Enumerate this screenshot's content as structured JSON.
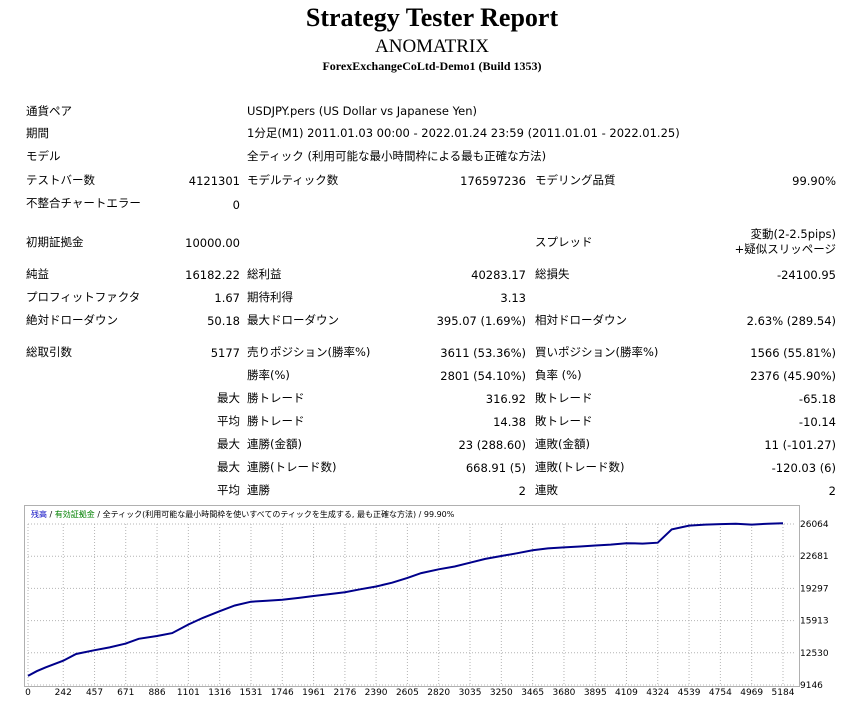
{
  "header": {
    "title": "Strategy Tester Report",
    "expert": "ANOMATRIX",
    "account": "ForexExchangeCoLtd-Demo1 (Build 1353)"
  },
  "summary": {
    "symbol_label": "通貨ペア",
    "symbol_value": "USDJPY.pers (US Dollar vs Japanese Yen)",
    "period_label": "期間",
    "period_value": "1分足(M1) 2011.01.03 00:00 - 2022.01.24 23:59 (2011.01.01 - 2022.01.25)",
    "model_label": "モデル",
    "model_value": "全ティック (利用可能な最小時間枠による最も正確な方法)",
    "bars_label": "テストバー数",
    "bars_value": "4121301",
    "ticks_label": "モデルティック数",
    "ticks_value": "176597236",
    "quality_label": "モデリング品質",
    "quality_value": "99.90%",
    "errors_label": "不整合チャートエラー",
    "errors_value": "0",
    "deposit_label": "初期証拠金",
    "deposit_value": "10000.00",
    "spread_label": "スプレッド",
    "spread_value_1": "変動(2-2.5pips)",
    "spread_value_2": "+疑似スリッページ",
    "net_label": "純益",
    "net_value": "16182.22",
    "gross_profit_label": "総利益",
    "gross_profit_value": "40283.17",
    "gross_loss_label": "総損失",
    "gross_loss_value": "-24100.95",
    "pf_label": "プロフィットファクタ",
    "pf_value": "1.67",
    "payoff_label": "期待利得",
    "payoff_value": "3.13",
    "abs_dd_label": "絶対ドローダウン",
    "abs_dd_value": "50.18",
    "max_dd_label": "最大ドローダウン",
    "max_dd_value": "395.07 (1.69%)",
    "rel_dd_label": "相対ドローダウン",
    "rel_dd_value": "2.63% (289.54)",
    "trades_label": "総取引数",
    "trades_value": "5177",
    "short_label": "売りポジション(勝率%)",
    "short_value": "3611 (53.36%)",
    "long_label": "買いポジション(勝率%)",
    "long_value": "1566 (55.81%)",
    "win_label": "勝率(%)",
    "win_value": "2801 (54.10%)",
    "loss_label": "負率 (%)",
    "loss_value": "2376 (45.90%)",
    "max_prefix": "最大",
    "avg_prefix": "平均",
    "largest_win_label": "勝トレード",
    "largest_win_value": "316.92",
    "largest_loss_label": "敗トレード",
    "largest_loss_value": "-65.18",
    "avg_win_label": "勝トレード",
    "avg_win_value": "14.38",
    "avg_loss_label": "敗トレード",
    "avg_loss_value": "-10.14",
    "max_cons_wins_money_label": "連勝(金額)",
    "max_cons_wins_money_value": "23 (288.60)",
    "max_cons_losses_money_label": "連敗(金額)",
    "max_cons_losses_money_value": "11 (-101.27)",
    "max_cons_profit_label": "連勝(トレード数)",
    "max_cons_profit_value": "668.91 (5)",
    "max_cons_loss_label": "連敗(トレード数)",
    "max_cons_loss_value": "-120.03 (6)",
    "avg_cons_wins_label": "連勝",
    "avg_cons_wins_value": "2",
    "avg_cons_losses_label": "連敗",
    "avg_cons_losses_value": "2"
  },
  "chart": {
    "legend_balance": "残高",
    "legend_equity": "有効証拠金",
    "legend_rest": "全ティック(利用可能な最小時間枠を使いすべてのティックを生成する, 最も正確な方法) / 99.90%",
    "line_color": "#00008b",
    "grid_color": "#b4b4b4"
  },
  "chart_data": {
    "type": "line",
    "x_ticks": [
      "0",
      "242",
      "457",
      "671",
      "886",
      "1101",
      "1316",
      "1531",
      "1746",
      "1961",
      "2176",
      "2390",
      "2605",
      "2820",
      "3035",
      "3250",
      "3465",
      "3680",
      "3895",
      "4109",
      "4324",
      "4539",
      "4754",
      "4969",
      "5184"
    ],
    "y_ticks": [
      "9146",
      "12530",
      "15913",
      "19297",
      "22681",
      "26064"
    ],
    "ylim": [
      9146,
      26064
    ],
    "xlim": [
      0,
      5184
    ],
    "series": [
      {
        "name": "残高",
        "x": [
          0,
          60,
          120,
          242,
          330,
          457,
          560,
          671,
          760,
          886,
          990,
          1101,
          1200,
          1316,
          1420,
          1531,
          1640,
          1746,
          1860,
          1961,
          2070,
          2176,
          2280,
          2390,
          2500,
          2605,
          2700,
          2820,
          2930,
          3035,
          3140,
          3250,
          3360,
          3465,
          3570,
          3680,
          3790,
          3895,
          4000,
          4109,
          4220,
          4324,
          4420,
          4539,
          4650,
          4754,
          4860,
          4969,
          5080,
          5184
        ],
        "y": [
          10100,
          10600,
          11000,
          11700,
          12400,
          12800,
          13100,
          13500,
          14000,
          14300,
          14600,
          15500,
          16200,
          16900,
          17500,
          17900,
          18000,
          18100,
          18300,
          18500,
          18700,
          18900,
          19200,
          19500,
          19900,
          20400,
          20900,
          21300,
          21600,
          22000,
          22400,
          22700,
          23000,
          23300,
          23500,
          23600,
          23700,
          23800,
          23900,
          24050,
          24000,
          24100,
          25500,
          25900,
          26000,
          26050,
          26100,
          26000,
          26100,
          26150
        ]
      }
    ]
  }
}
